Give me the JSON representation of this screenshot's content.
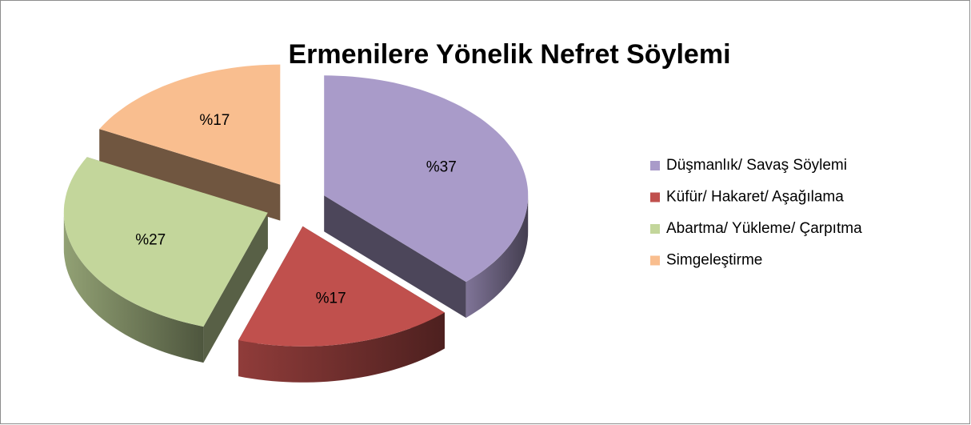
{
  "chart_data": {
    "type": "pie",
    "title": "Ermenilere Yönelik Nefret Söylemi",
    "categories": [
      "Düşmanlık/ Savaş Söylemi",
      "Küfür/ Hakaret/ Aşağılama",
      "Abartma/ Yükleme/ Çarpıtma",
      "Simgeleştirme"
    ],
    "values": [
      37,
      17,
      27,
      17
    ],
    "value_labels": [
      "%37",
      "%17",
      "%27",
      "%17"
    ],
    "colors": [
      "#a99bc9",
      "#c0504d",
      "#c3d69b",
      "#f9be8f"
    ],
    "legend": "right"
  }
}
